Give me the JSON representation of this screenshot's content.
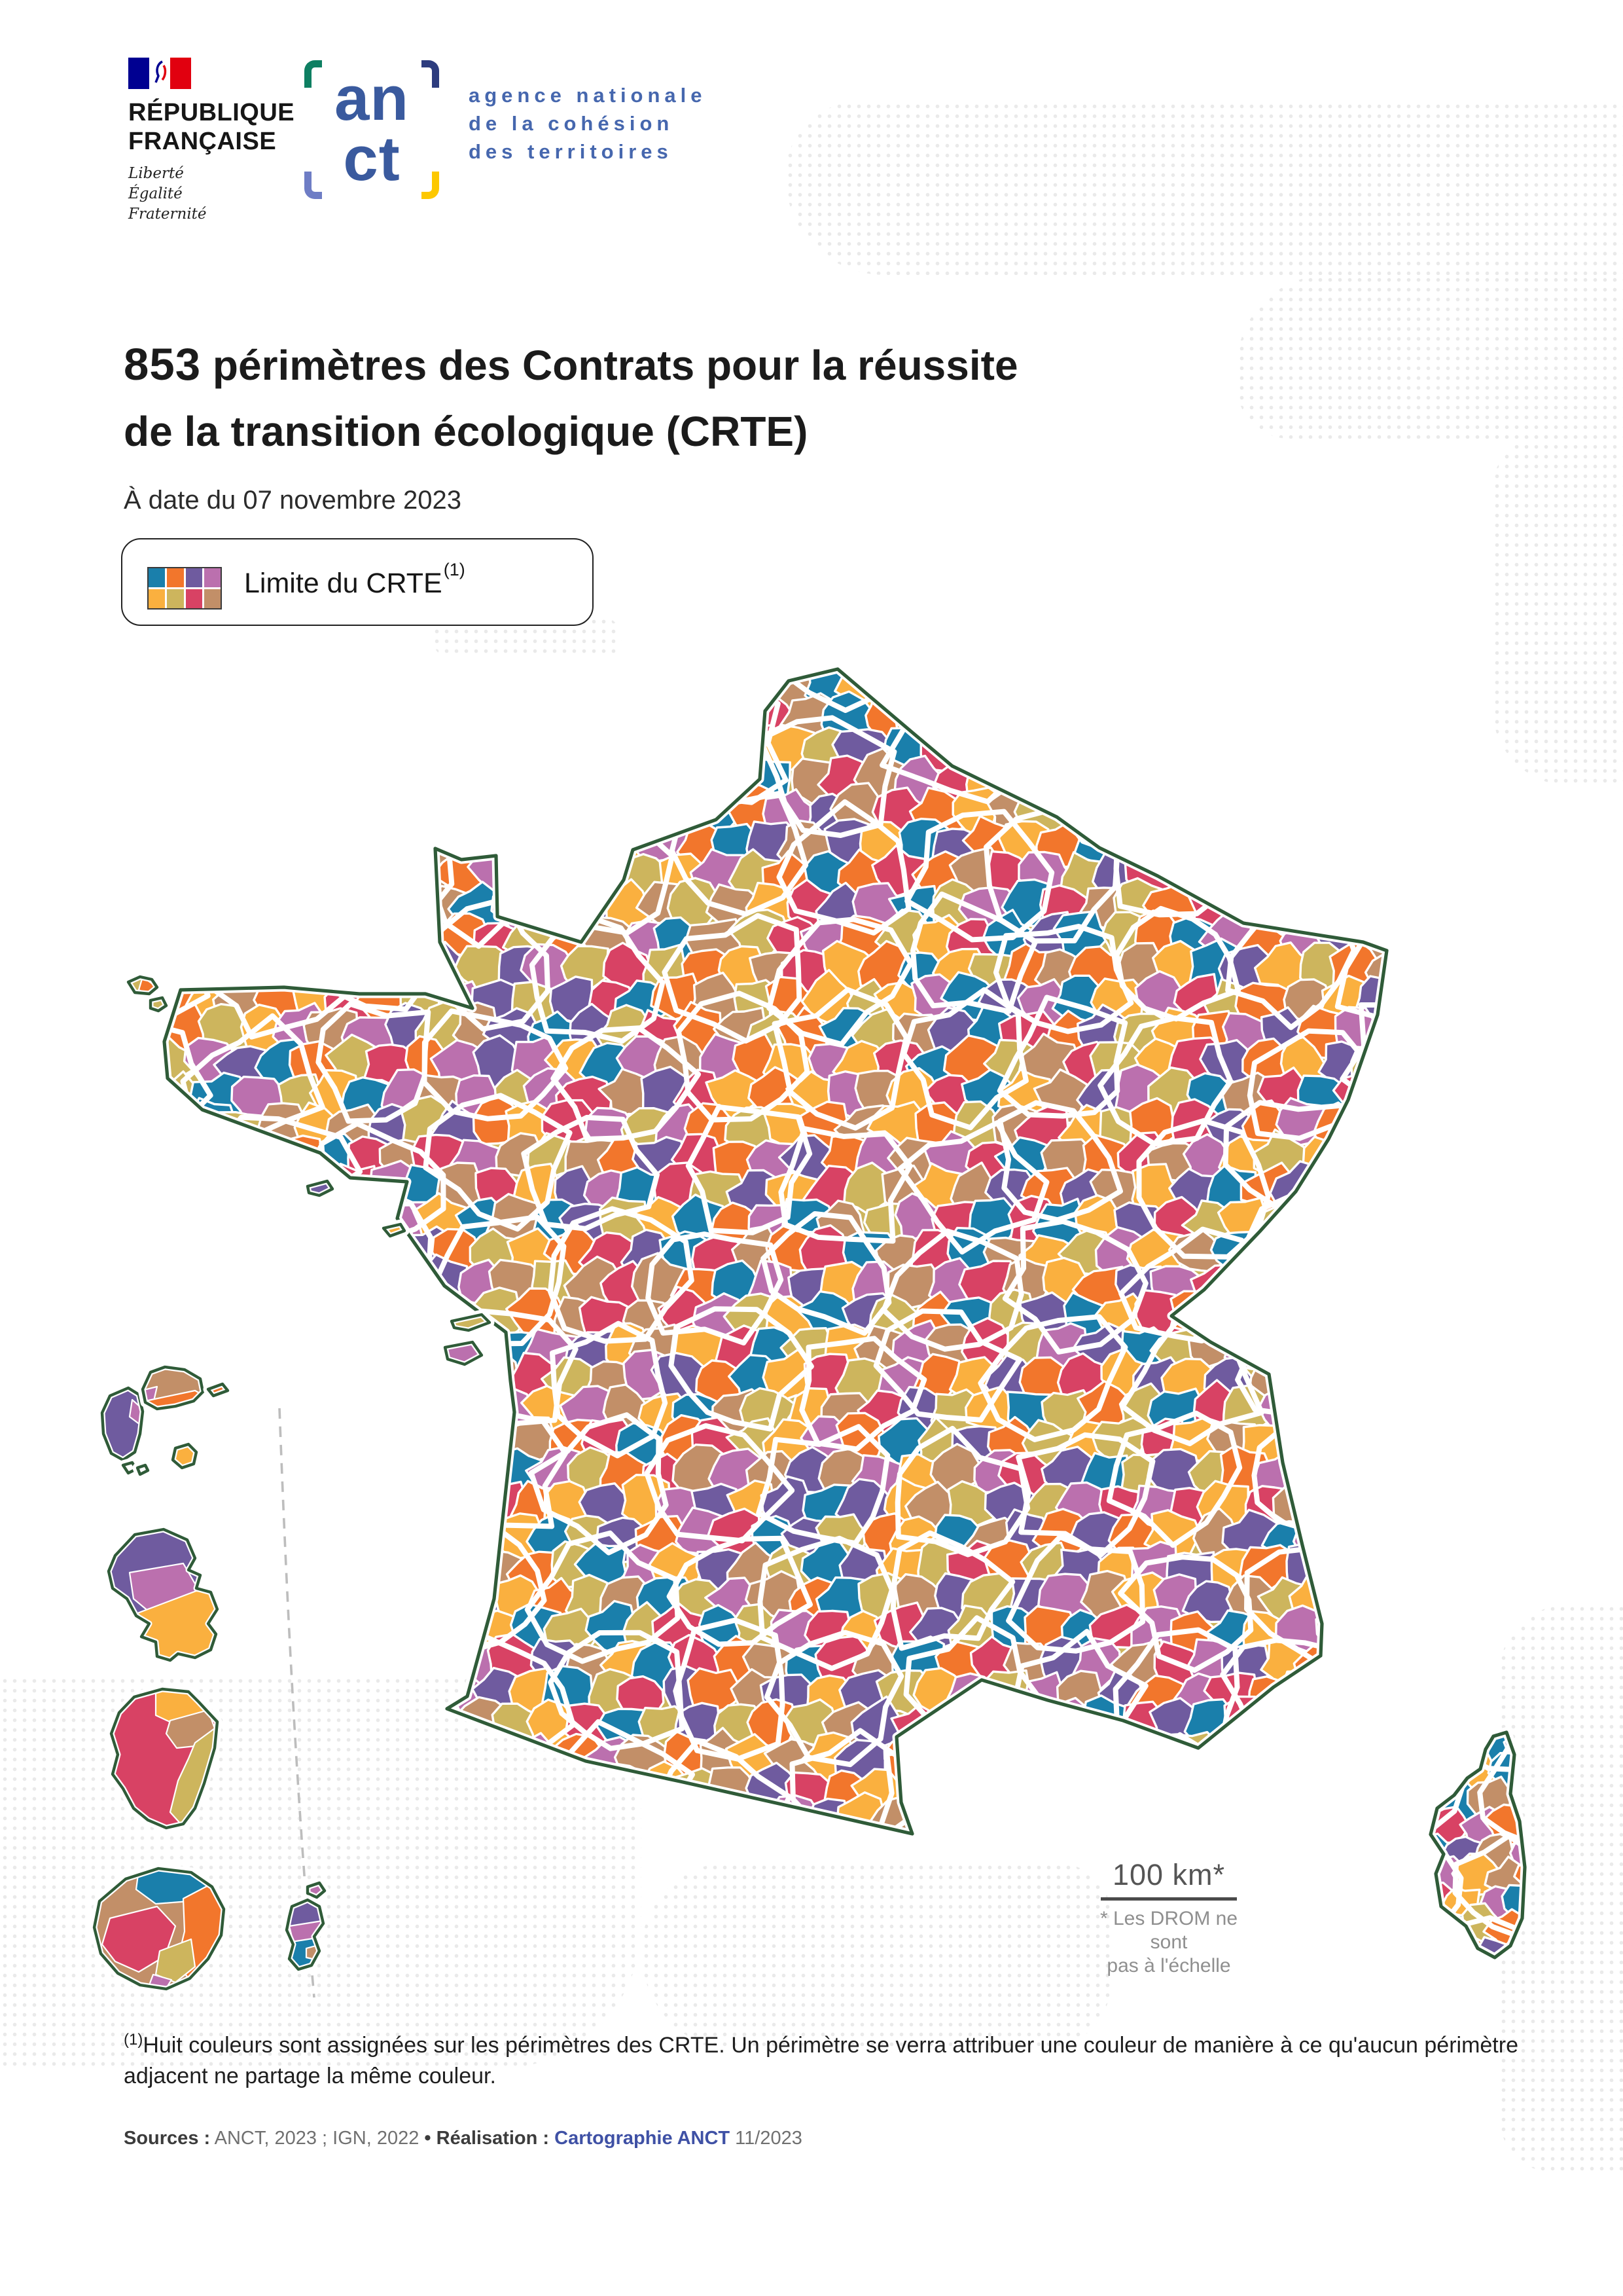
{
  "header": {
    "republic": {
      "name_line1": "RÉPUBLIQUE",
      "name_line2": "FRANÇAISE",
      "motto": [
        "Liberté",
        "Égalité",
        "Fraternité"
      ],
      "flag_blue": "#000091",
      "flag_red": "#e1000f"
    },
    "anct": {
      "logo_line1": "an",
      "logo_line2": "ct",
      "logo_color": "#3a5a9e",
      "mark_colors": {
        "top_left": "#0e7f62",
        "top_right": "#2d3c7e",
        "bottom_left": "#6e7dc5",
        "bottom_right": "#fdc800"
      },
      "name_line1": "agence nationale",
      "name_line2": "de la cohésion",
      "name_line3": "des territoires"
    }
  },
  "title": {
    "count": "853",
    "line1_rest": " périmètres des Contrats pour la réussite",
    "line2": "de la transition écologique (CRTE)",
    "date": "À date du 07 novembre 2023"
  },
  "legend": {
    "label": "Limite du CRTE",
    "superscript": "(1)",
    "swatch_order": [
      "blue",
      "orange",
      "purple",
      "orchid",
      "amber",
      "khaki",
      "crimson",
      "tan"
    ]
  },
  "map": {
    "palette": {
      "blue": "#1a7fab",
      "orange": "#f2762c",
      "purple": "#6f5b9f",
      "orchid": "#bb70ae",
      "amber": "#fab03f",
      "khaki": "#cdb55d",
      "crimson": "#d84264",
      "tan": "#c28f68"
    },
    "coastline_color": "#2f5b38",
    "cell_border_color": "#ffffff",
    "scale_label": "100 km*",
    "scale_note_line1": "* Les DROM ne sont",
    "scale_note_line2": "pas à l'échelle"
  },
  "footnote": {
    "superscript": "(1)",
    "text": "Huit couleurs sont assignées sur les périmètres des CRTE. Un périmètre se verra attribuer une couleur de manière à ce qu'aucun périmètre adjacent ne partage la même couleur."
  },
  "sources": {
    "label": "Sources :",
    "values": " ANCT, 2023 ; IGN, 2022 ",
    "bullet": "• ",
    "realisation_label": "Réalisation :",
    "realisation_org": " Cartographie ANCT",
    "realisation_date": " 11/2023"
  }
}
